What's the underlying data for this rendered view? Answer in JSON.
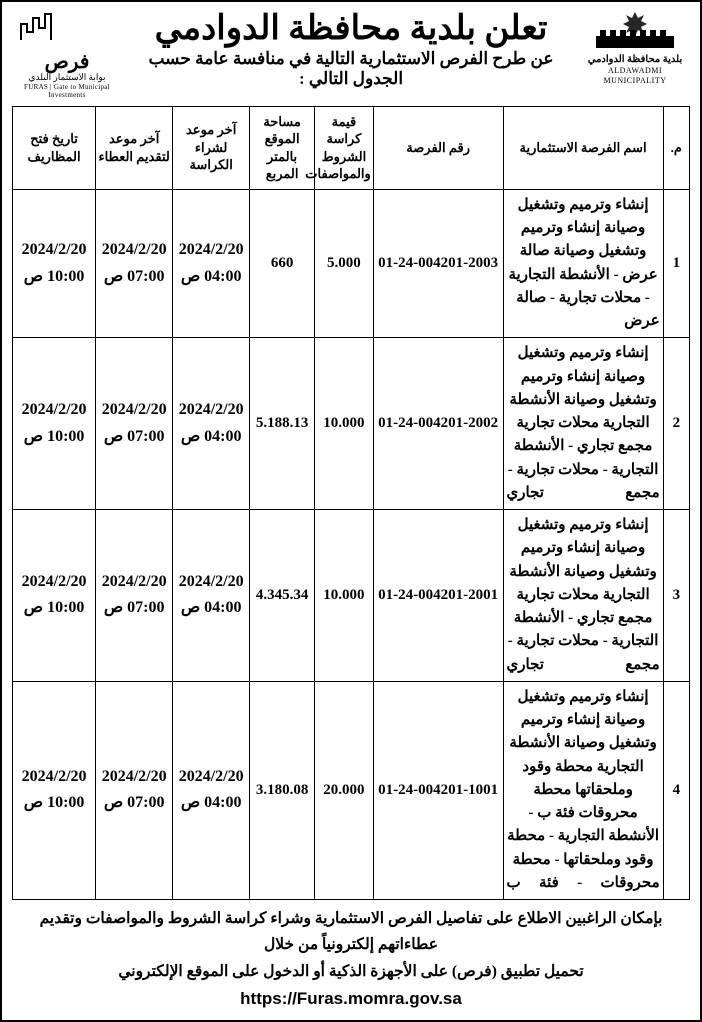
{
  "header": {
    "title": "تعلن  بلدية محافظة الدوادمي",
    "subtitle": "عن طرح الفرص الاستثمارية التالية في منافسة عامة  حسب الجدول التالي :",
    "logo_right": {
      "line1": "بلدية محافظة الدوادمي",
      "line2": "ALDAWADMI MUNICIPALITY"
    },
    "logo_left": {
      "word": "فرص",
      "line1": "بوابة الاستثمار البلدي",
      "line2": "FURAS | Gate to Municipal Investments"
    }
  },
  "columns": [
    "م.",
    "اسم الفرصة الاستثمارية",
    "رقم الفرصة",
    "قيمة كراسة الشروط والمواصفات",
    "مساحة الموقع بالمتر المربع",
    "آخر موعد لشراء الكراسة",
    "آخر موعد لتقديم العطاء",
    "تاريخ فتح المظاريف"
  ],
  "rows": [
    {
      "idx": "1",
      "name": "إنشاء وترميم وتشغيل وصيانة إنشاء وترميم وتشغيل وصيانة صالة عرض - الأنشطة التجارية - محلات تجارية - صالة عرض",
      "num": "01-24-004201-2003",
      "price": "5.000",
      "area": "660",
      "d_buy": {
        "date": "2024/2/20",
        "time": "04:00 ص"
      },
      "d_bid": {
        "date": "2024/2/20",
        "time": "07:00 ص"
      },
      "d_open": {
        "date": "2024/2/20",
        "time": "10:00 ص"
      }
    },
    {
      "idx": "2",
      "name": "إنشاء وترميم وتشغيل وصيانة إنشاء وترميم وتشغيل وصيانة الأنشطة التجارية محلات تجارية مجمع تجاري - الأنشطة التجارية - محلات تجارية - مجمع تجاري",
      "num": "01-24-004201-2002",
      "price": "10.000",
      "area": "5.188.13",
      "d_buy": {
        "date": "2024/2/20",
        "time": "04:00 ص"
      },
      "d_bid": {
        "date": "2024/2/20",
        "time": "07:00 ص"
      },
      "d_open": {
        "date": "2024/2/20",
        "time": "10:00 ص"
      }
    },
    {
      "idx": "3",
      "name": "إنشاء وترميم وتشغيل وصيانة إنشاء وترميم وتشغيل وصيانة الأنشطة التجارية محلات تجارية مجمع تجاري - الأنشطة التجارية - محلات تجارية - مجمع تجاري",
      "num": "01-24-004201-2001",
      "price": "10.000",
      "area": "4.345.34",
      "d_buy": {
        "date": "2024/2/20",
        "time": "04:00 ص"
      },
      "d_bid": {
        "date": "2024/2/20",
        "time": "07:00 ص"
      },
      "d_open": {
        "date": "2024/2/20",
        "time": "10:00 ص"
      }
    },
    {
      "idx": "4",
      "name": "إنشاء وترميم وتشغيل وصيانة إنشاء وترميم وتشغيل وصيانة الأنشطة التجارية محطة وقود وملحقاتها محطة محروقات فئة ب - الأنشطة التجارية - محطة وقود وملحقاتها - محطة محروقات - فئة ب",
      "num": "01-24-004201-1001",
      "price": "20.000",
      "area": "3.180.08",
      "d_buy": {
        "date": "2024/2/20",
        "time": "04:00 ص"
      },
      "d_bid": {
        "date": "2024/2/20",
        "time": "07:00 ص"
      },
      "d_open": {
        "date": "2024/2/20",
        "time": "10:00 ص"
      }
    }
  ],
  "footer": {
    "line1": "بإمكان الراغبين الاطلاع على تفاصيل الفرص الاستثمارية وشراء كراسة الشروط والمواصفات وتقديم عطاءاتهم إلكترونياً من خلال",
    "line2_pre": "تحميل تطبيق (فرص) على الأجهزة الذكية أو الدخول على الموقع الإلكتروني ",
    "url": "https://Furas.momra.gov.sa"
  }
}
